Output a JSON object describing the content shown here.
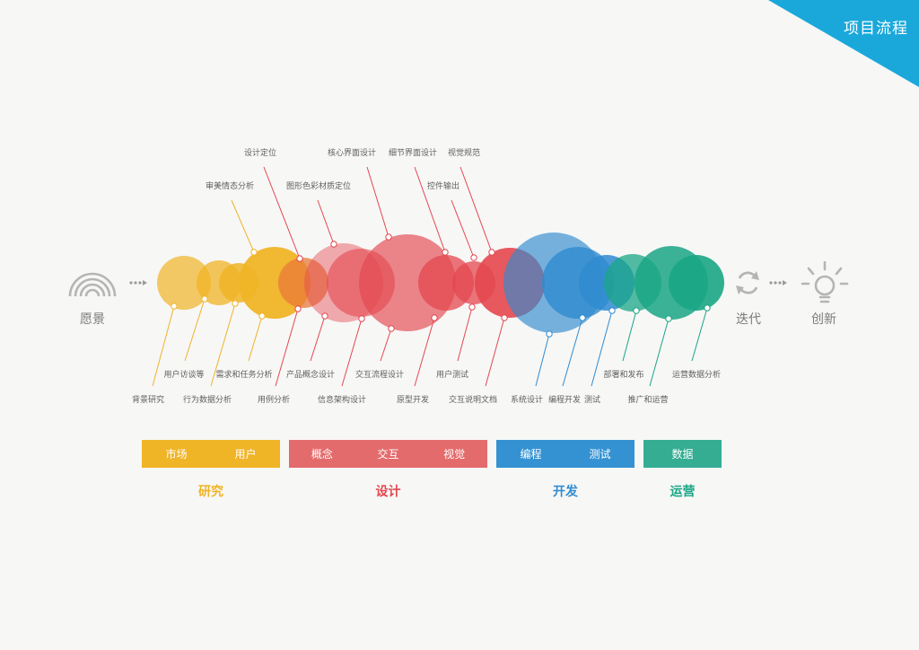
{
  "corner_title": "项目流程",
  "start_label": "愿景",
  "iterate_label": "迭代",
  "end_label": "创新",
  "colors": {
    "research": "#f0b427",
    "design": "#e4474f",
    "dev": "#2f8bd0",
    "ops": "#1aa685",
    "corner": "#1aa8db",
    "icon": "#b5b5b5"
  },
  "icons": [
    "rainbow-icon",
    "refresh-icon",
    "lightbulb-icon"
  ],
  "phases": [
    {
      "key": "research",
      "title": "研究",
      "items": [
        "市场",
        "用户"
      ]
    },
    {
      "key": "design",
      "title": "设计",
      "items": [
        "概念",
        "交互",
        "视觉"
      ]
    },
    {
      "key": "dev",
      "title": "开发",
      "items": [
        "编程",
        "测试"
      ]
    },
    {
      "key": "ops",
      "title": "运营",
      "items": [
        "数据"
      ]
    }
  ],
  "annotations_top": [
    "设计定位",
    "核心界面设计",
    "细节界面设计",
    "视觉规范",
    "审美情态分析",
    "图形色彩材质定位",
    "控件输出"
  ],
  "annotations_bottom": [
    "用户访谈等",
    "需求和任务分析",
    "产品概念设计",
    "交互流程设计",
    "用户测试",
    "部署和发布",
    "运营数据分析",
    "背景研究",
    "行为数据分析",
    "用例分析",
    "信息架构设计",
    "原型开发",
    "交互说明文档",
    "系统设计",
    "编程开发",
    "测试",
    "推广和运营"
  ]
}
